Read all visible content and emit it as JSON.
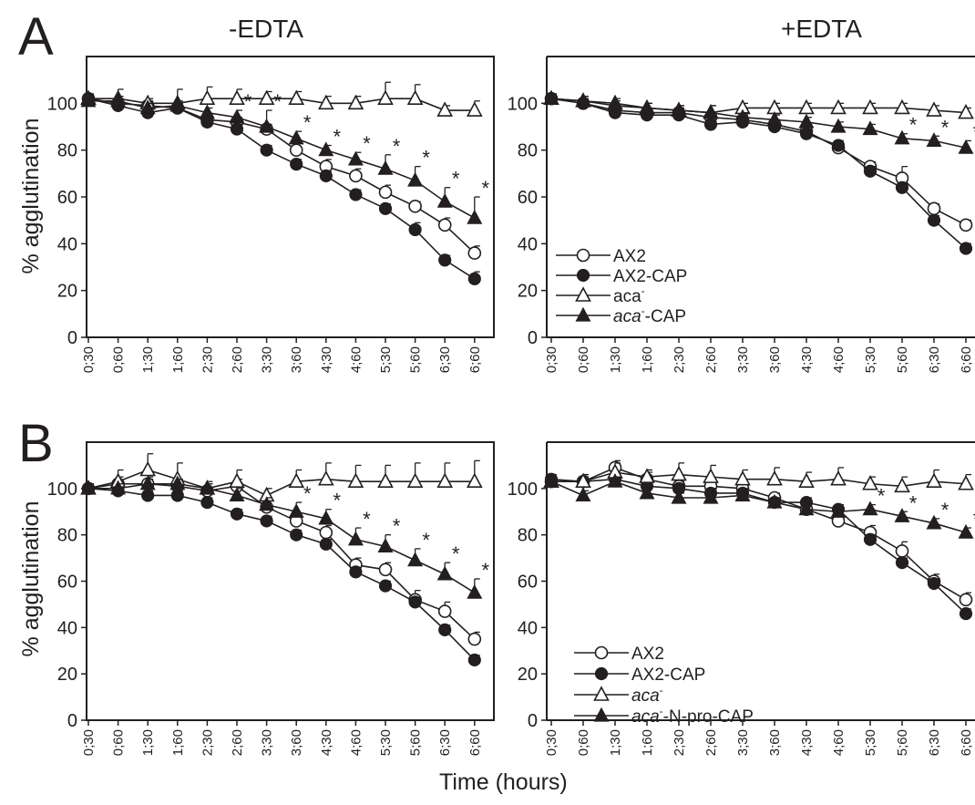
{
  "figure": {
    "panel_letters": [
      "A",
      "B"
    ],
    "column_titles": [
      "-EDTA",
      "+EDTA"
    ],
    "x_title": "Time (hours)"
  },
  "chart_data": [
    {
      "id": "A-minus-EDTA",
      "type": "line",
      "title": "",
      "xlabel": "",
      "ylabel": "% agglutination",
      "ylim": [
        0,
        120
      ],
      "yticks": [
        0,
        20,
        40,
        60,
        80,
        100
      ],
      "categories": [
        "0;30",
        "0;60",
        "1;30",
        "1;60",
        "2;30",
        "2;60",
        "3;30",
        "3;60",
        "4;30",
        "4;60",
        "5;30",
        "5;60",
        "6;30",
        "6;60"
      ],
      "grid": false,
      "legend": "none",
      "series": [
        {
          "name": "AX2",
          "marker": "circle-open",
          "values": [
            102,
            100,
            99,
            98,
            93,
            92,
            89,
            80,
            73,
            69,
            62,
            56,
            48,
            36
          ],
          "errors": [
            2,
            2,
            2,
            2,
            2,
            2,
            2,
            3,
            3,
            3,
            3,
            2,
            3,
            3
          ]
        },
        {
          "name": "AX2-CAP",
          "marker": "circle-filled",
          "values": [
            102,
            99,
            96,
            98,
            92,
            89,
            80,
            74,
            69,
            61,
            55,
            46,
            33,
            25
          ],
          "errors": [
            2,
            2,
            2,
            2,
            2,
            2,
            2,
            2,
            2,
            2,
            2,
            3,
            2,
            3
          ]
        },
        {
          "name": "aca-",
          "marker": "triangle-open",
          "values": [
            102,
            102,
            100,
            100,
            102,
            102,
            102,
            102,
            100,
            100,
            102,
            102,
            97,
            97
          ],
          "errors": [
            2,
            4,
            2,
            6,
            5,
            4,
            3,
            3,
            3,
            3,
            7,
            6,
            2,
            4
          ]
        },
        {
          "name": "aca--CAP",
          "marker": "triangle-filled",
          "values": [
            101,
            101,
            98,
            99,
            96,
            94,
            90,
            85,
            80,
            76,
            72,
            67,
            58,
            51
          ],
          "errors": [
            2,
            2,
            2,
            2,
            2,
            3,
            7,
            3,
            2,
            3,
            6,
            6,
            6,
            9
          ]
        }
      ],
      "significance": [
        false,
        false,
        false,
        false,
        false,
        true,
        true,
        true,
        true,
        true,
        true,
        true,
        true,
        true
      ],
      "significance_mark": "*"
    },
    {
      "id": "A-plus-EDTA",
      "type": "line",
      "title": "",
      "xlabel": "",
      "ylabel": "",
      "ylim": [
        0,
        120
      ],
      "yticks": [
        0,
        20,
        40,
        60,
        80,
        100
      ],
      "categories": [
        "0;30",
        "0;60",
        "1;30",
        "1;60",
        "2;30",
        "2;60",
        "3;30",
        "3;60",
        "4;30",
        "4;60",
        "5;30",
        "5;60",
        "6;30",
        "6;60"
      ],
      "grid": false,
      "legend": "lower-left",
      "series": [
        {
          "name": "AX2",
          "label_base": "AX2",
          "label_sup": "",
          "label_suffix": "",
          "italic": false,
          "marker": "circle-open",
          "values": [
            102,
            100,
            97,
            96,
            96,
            94,
            93,
            91,
            88,
            81,
            73,
            68,
            55,
            48
          ],
          "errors": [
            2,
            2,
            2,
            2,
            2,
            2,
            2,
            2,
            2,
            2,
            2,
            5,
            2,
            2
          ]
        },
        {
          "name": "AX2-CAP",
          "label_base": "AX2-CAP",
          "label_sup": "",
          "label_suffix": "",
          "italic": false,
          "marker": "circle-filled",
          "values": [
            102,
            100,
            96,
            95,
            95,
            91,
            92,
            90,
            87,
            82,
            71,
            64,
            50,
            38
          ],
          "errors": [
            2,
            2,
            2,
            2,
            2,
            2,
            2,
            2,
            2,
            2,
            2,
            2,
            2,
            2
          ]
        },
        {
          "name": "aca-",
          "label_base": "aca",
          "label_sup": "-",
          "label_suffix": "",
          "italic": false,
          "marker": "triangle-open",
          "values": [
            102,
            101,
            100,
            98,
            97,
            96,
            98,
            98,
            98,
            98,
            98,
            98,
            97,
            96
          ],
          "errors": [
            2,
            2,
            2,
            2,
            2,
            3,
            2,
            2,
            2,
            2,
            2,
            2,
            2,
            2
          ]
        },
        {
          "name": "aca--CAP",
          "label_base": "aca",
          "label_sup": "-",
          "label_suffix": "-CAP",
          "italic": true,
          "marker": "triangle-filled",
          "values": [
            102,
            101,
            99,
            98,
            97,
            96,
            94,
            93,
            92,
            90,
            89,
            85,
            84,
            81
          ],
          "errors": [
            2,
            2,
            2,
            2,
            2,
            3,
            2,
            2,
            2,
            2,
            2,
            2,
            2,
            3
          ]
        }
      ],
      "significance": [
        false,
        false,
        false,
        false,
        false,
        false,
        false,
        false,
        false,
        false,
        false,
        true,
        true,
        true
      ],
      "significance_mark": "*"
    },
    {
      "id": "B-minus-EDTA",
      "type": "line",
      "title": "",
      "xlabel": "",
      "ylabel": "% agglutination",
      "ylim": [
        0,
        120
      ],
      "yticks": [
        0,
        20,
        40,
        60,
        80,
        100
      ],
      "categories": [
        "0;30",
        "0;60",
        "1;30",
        "1;60",
        "2;30",
        "2;60",
        "3;30",
        "3;60",
        "4;30",
        "4;60",
        "5;30",
        "5;60",
        "6;30",
        "6;60"
      ],
      "grid": false,
      "legend": "none",
      "series": [
        {
          "name": "AX2",
          "marker": "circle-open",
          "values": [
            100,
            102,
            102,
            101,
            99,
            101,
            92,
            86,
            81,
            67,
            65,
            52,
            47,
            35
          ],
          "errors": [
            2,
            3,
            3,
            3,
            3,
            3,
            3,
            3,
            3,
            3,
            3,
            4,
            4,
            3
          ]
        },
        {
          "name": "AX2-CAP",
          "marker": "circle-filled",
          "values": [
            100,
            99,
            97,
            97,
            94,
            89,
            86,
            80,
            76,
            64,
            58,
            51,
            39,
            26
          ],
          "errors": [
            2,
            2,
            2,
            2,
            2,
            2,
            2,
            2,
            2,
            2,
            2,
            2,
            2,
            2
          ]
        },
        {
          "name": "aca-",
          "marker": "triangle-open",
          "values": [
            100,
            103,
            108,
            104,
            100,
            103,
            97,
            103,
            104,
            103,
            103,
            103,
            103,
            103
          ],
          "errors": [
            2,
            5,
            7,
            7,
            3,
            5,
            3,
            5,
            7,
            7,
            7,
            8,
            8,
            9
          ]
        },
        {
          "name": "aca--N-pro-CAP",
          "marker": "triangle-filled",
          "values": [
            100,
            100,
            102,
            102,
            100,
            97,
            93,
            90,
            87,
            78,
            75,
            69,
            63,
            55
          ],
          "errors": [
            2,
            2,
            2,
            2,
            2,
            3,
            3,
            4,
            4,
            5,
            5,
            5,
            5,
            6
          ]
        }
      ],
      "significance": [
        false,
        false,
        false,
        false,
        false,
        false,
        false,
        true,
        true,
        true,
        true,
        true,
        true,
        true
      ],
      "significance_mark": "*"
    },
    {
      "id": "B-plus-EDTA",
      "type": "line",
      "title": "",
      "xlabel": "",
      "ylabel": "",
      "ylim": [
        0,
        120
      ],
      "yticks": [
        0,
        20,
        40,
        60,
        80,
        100
      ],
      "categories": [
        "0;30",
        "0;60",
        "1;30",
        "1;60",
        "2;30",
        "2;60",
        "3;30",
        "3;60",
        "4;30",
        "4;60",
        "5;30",
        "5;60",
        "6;30",
        "6;60"
      ],
      "grid": false,
      "legend": "lower-left",
      "series": [
        {
          "name": "AX2",
          "label_base": "AX2",
          "label_sup": "",
          "label_suffix": "",
          "italic": false,
          "marker": "circle-open",
          "values": [
            103,
            103,
            109,
            104,
            101,
            101,
            100,
            96,
            91,
            86,
            81,
            73,
            60,
            52
          ],
          "errors": [
            2,
            3,
            3,
            3,
            2,
            3,
            2,
            2,
            2,
            2,
            3,
            4,
            3,
            3
          ]
        },
        {
          "name": "AX2-CAP",
          "label_base": "AX2-CAP",
          "label_sup": "",
          "label_suffix": "",
          "italic": false,
          "marker": "circle-filled",
          "values": [
            104,
            103,
            104,
            101,
            100,
            98,
            98,
            94,
            94,
            91,
            78,
            68,
            59,
            46
          ],
          "errors": [
            2,
            2,
            2,
            2,
            2,
            2,
            2,
            2,
            2,
            2,
            2,
            2,
            2,
            2
          ]
        },
        {
          "name": "aca-",
          "label_base": "aca",
          "label_sup": "-",
          "label_suffix": "",
          "italic": true,
          "marker": "triangle-open",
          "values": [
            103,
            103,
            107,
            105,
            106,
            105,
            104,
            104,
            103,
            104,
            102,
            101,
            103,
            102
          ],
          "errors": [
            2,
            3,
            4,
            3,
            5,
            5,
            4,
            5,
            4,
            5,
            3,
            4,
            5,
            4
          ]
        },
        {
          "name": "aca--N-pro-CAP",
          "label_base": "aca",
          "label_sup": "-",
          "label_suffix": "-N-pro-CAP",
          "italic": true,
          "marker": "triangle-filled",
          "values": [
            103,
            97,
            103,
            98,
            96,
            96,
            97,
            94,
            91,
            90,
            91,
            88,
            85,
            81
          ],
          "errors": [
            2,
            2,
            2,
            2,
            2,
            2,
            2,
            2,
            2,
            2,
            2,
            2,
            2,
            2
          ]
        }
      ],
      "significance": [
        false,
        false,
        false,
        false,
        false,
        false,
        false,
        false,
        false,
        false,
        true,
        true,
        true,
        true
      ],
      "significance_mark": "*"
    }
  ]
}
